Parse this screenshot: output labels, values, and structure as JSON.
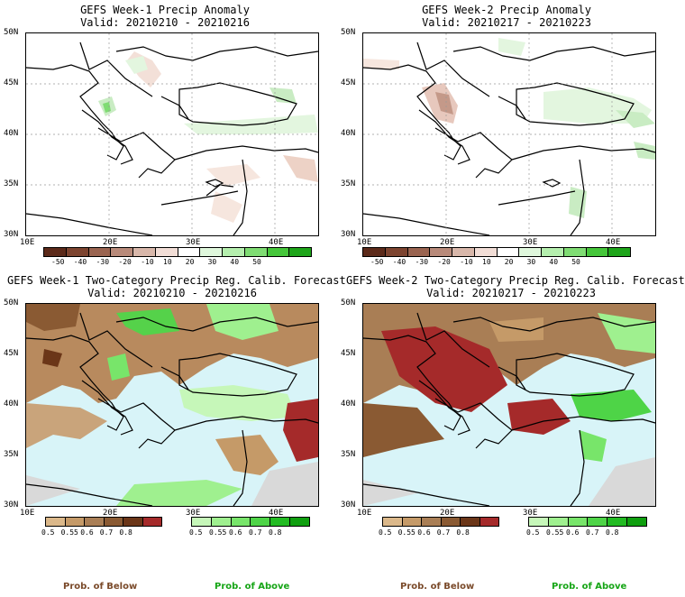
{
  "panels": [
    {
      "title": "GEFS Week-1 Precip Anomaly",
      "valid": "Valid: 20210210 - 20210216"
    },
    {
      "title": "GEFS Week-2 Precip Anomaly",
      "valid": "Valid: 20210217 - 20210223"
    },
    {
      "title": "GEFS Week-1 Two-Category Precip Reg. Calib. Forecast",
      "valid": "Valid: 20210210 - 20210216"
    },
    {
      "title": "GEFS Week-2 Two-Category Precip Reg. Calib. Forecast",
      "valid": "Valid: 20210217 - 20210223"
    }
  ],
  "lat_labels": [
    "50N",
    "45N",
    "40N",
    "35N",
    "30N"
  ],
  "lon_labels": [
    "10E",
    "20E",
    "30E",
    "40E"
  ],
  "anomaly_ticks": [
    "-50",
    "-40",
    "-30",
    "-20",
    "-10",
    "10",
    "20",
    "30",
    "40",
    "50"
  ],
  "anomaly_colors": [
    "#5c2a1a",
    "#7d4430",
    "#9a6450",
    "#b88a7a",
    "#d8b7aa",
    "#f1ddd6",
    "#ffffff",
    "#dff7dc",
    "#b5efae",
    "#7fdc73",
    "#45c63a",
    "#1ea51a"
  ],
  "prob_ticks": [
    "0.5",
    "0.55",
    "0.6",
    "0.7",
    "0.8"
  ],
  "below_colors": [
    "#dbb88a",
    "#c59a68",
    "#a97e55",
    "#8a5a33",
    "#6b3618",
    "#a52a2a"
  ],
  "above_colors": [
    "#c6f7b9",
    "#9ff08f",
    "#78e56a",
    "#4ed447",
    "#22bb22",
    "#0f9f0f"
  ],
  "prob_below_label": "Prob. of Below",
  "prob_above_label": "Prob. of Above"
}
